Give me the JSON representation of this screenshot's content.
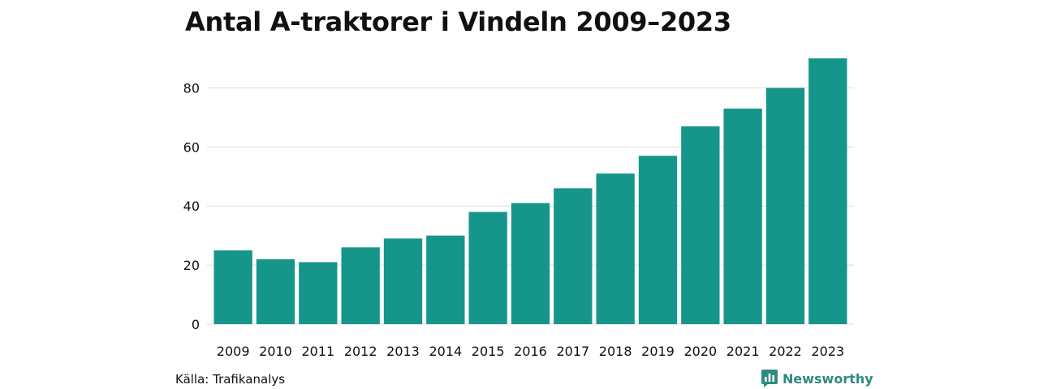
{
  "chart_data": {
    "type": "bar",
    "title": "Antal A-traktorer i Vindeln 2009–2023",
    "categories": [
      "2009",
      "2010",
      "2011",
      "2012",
      "2013",
      "2014",
      "2015",
      "2016",
      "2017",
      "2018",
      "2019",
      "2020",
      "2021",
      "2022",
      "2023"
    ],
    "values": [
      25,
      22,
      21,
      26,
      29,
      30,
      38,
      41,
      46,
      51,
      57,
      67,
      73,
      80,
      90
    ],
    "ylim": [
      0,
      90
    ],
    "yticks": [
      0,
      20,
      40,
      60,
      80
    ],
    "grid": true,
    "bar_color": "#16968a",
    "grid_color": "#dddddd"
  },
  "footer": {
    "source": "Källa: Trafikanalys",
    "brand": "Newsworthy",
    "brand_icon": "bar-chart-speech-bubble-icon",
    "brand_color": "#2e8b80"
  }
}
